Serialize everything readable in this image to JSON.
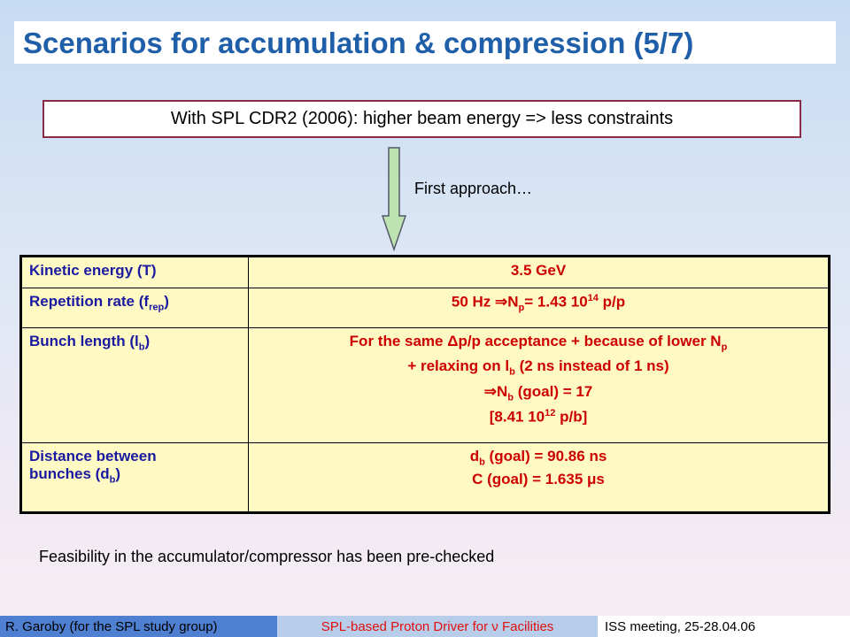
{
  "title": "Scenarios for accumulation & compression (5/7)",
  "subtitle": "With SPL CDR2 (2006): higher beam energy => less constraints",
  "approach": "First approach…",
  "table": {
    "rows": [
      {
        "label": "Kinetic energy (T)",
        "value": "3.5 GeV"
      },
      {
        "label_pre": "Repetition rate (f",
        "label_sub": "rep",
        "label_post": ")",
        "value_pre": "50 Hz ",
        "value_sym": "⇒",
        "value_mid": "N",
        "value_sub": "p",
        "value_mid2": "= 1.43 10",
        "value_sup": "14",
        "value_post": " p/p"
      },
      {
        "label_pre": "Bunch length (l",
        "label_sub": "b",
        "label_post": ")",
        "line1_pre": "For the same ",
        "line1_sym": "Δ",
        "line1_mid": "p/p acceptance + because of lower N",
        "line1_sub": "p",
        "line2_pre": "+ relaxing on l",
        "line2_sub": "b",
        "line2_post": " (2 ns instead of 1 ns)",
        "line3_sym": "⇒",
        "line3_pre": "N",
        "line3_sub": "b",
        "line3_post": " (goal) = 17",
        "line4_pre": "[8.41 10",
        "line4_sup": "12",
        "line4_post": " p/b]"
      },
      {
        "label_line1": "Distance between",
        "label_line2_pre": "bunches (d",
        "label_line2_sub": "b",
        "label_line2_post": ")",
        "line1_pre": "d",
        "line1_sub": "b",
        "line1_post": " (goal) = 90.86 ns",
        "line2_pre": "C (goal) = 1.635 ",
        "line2_sym": "μ",
        "line2_post": "s"
      }
    ]
  },
  "feasibility": "Feasibility in the accumulator/compressor has been pre-checked",
  "footer": {
    "left": "R. Garoby (for the SPL study group)",
    "middle_pre": "SPL-based Proton Driver for ",
    "middle_sym": "ν",
    "middle_post": " Facilities",
    "right": "ISS meeting, 25-28.04.06"
  },
  "colors": {
    "title": "#1f5ea8",
    "label": "#1a1aa0",
    "value": "#cc0000",
    "table_bg": "#fff9c4",
    "box_border": "#8b2b45",
    "arrow_fill": "#bde3b3",
    "footer_left": "#4f7fd0",
    "footer_mid": "#b7cde9"
  }
}
